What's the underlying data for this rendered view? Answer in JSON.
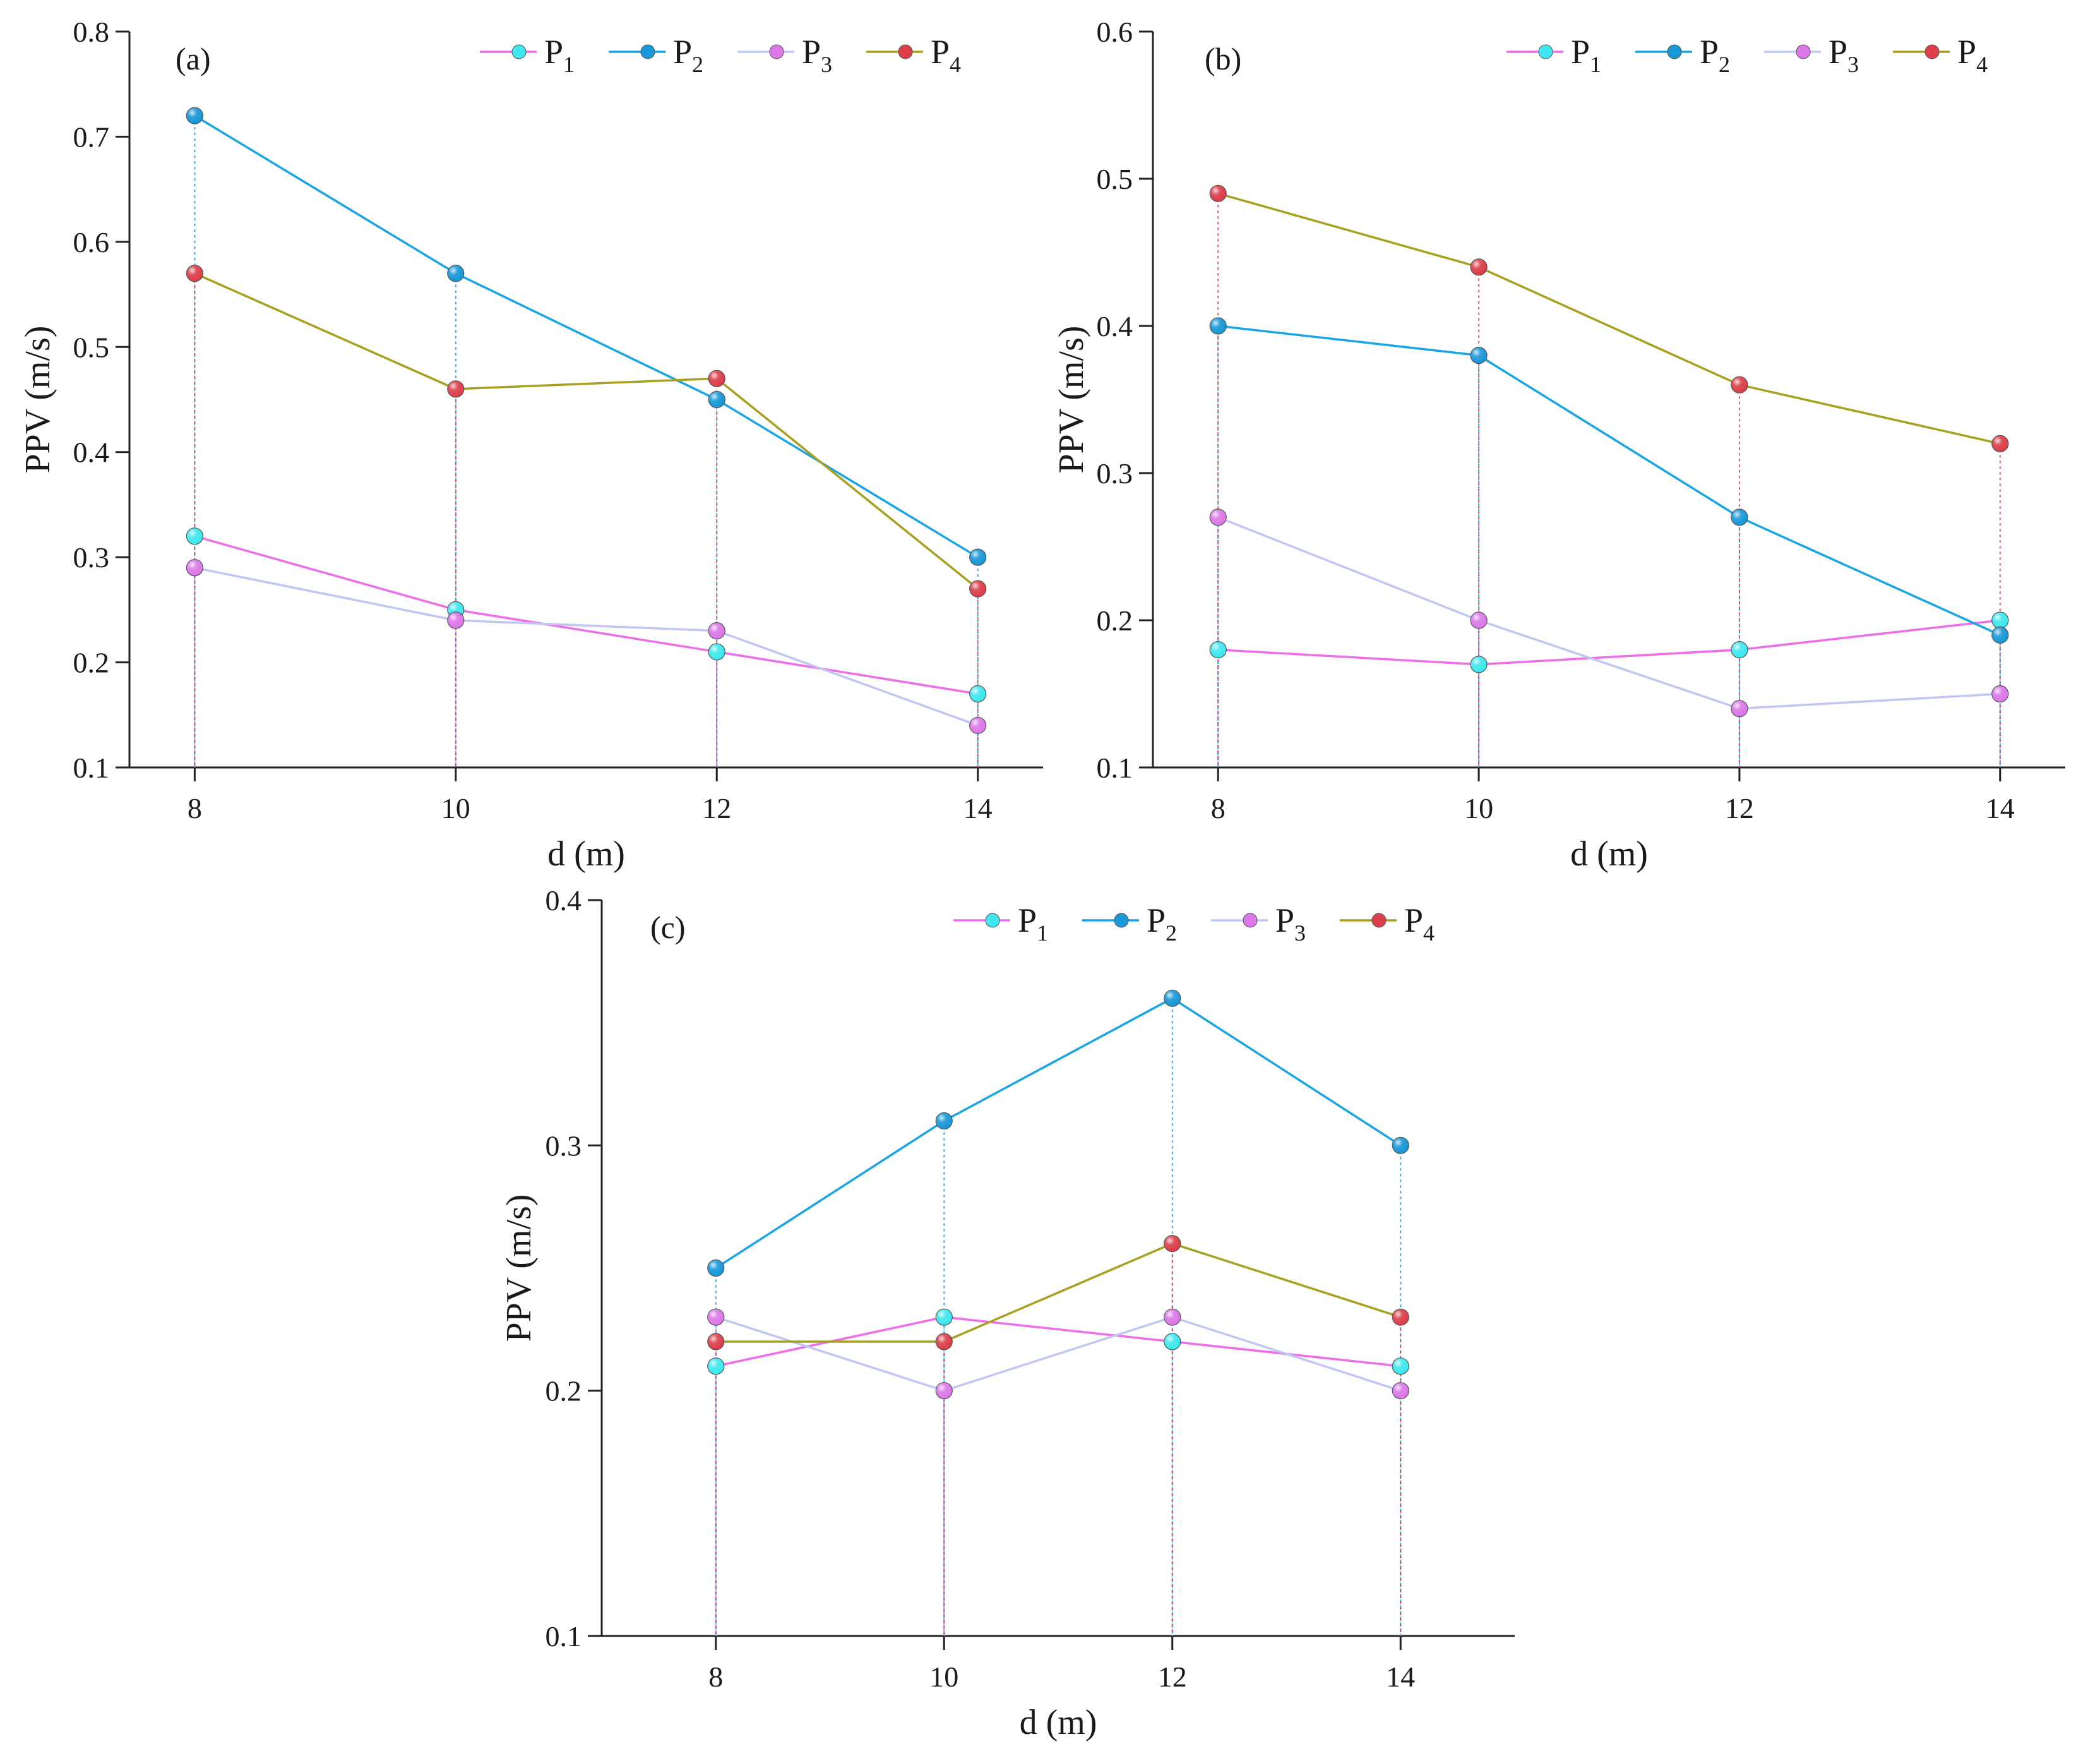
{
  "chart_data": [
    {
      "type": "line",
      "panel": "(a)",
      "xlabel": "d (m)",
      "ylabel": "PPV (m/s)",
      "x": [
        8,
        10,
        12,
        14
      ],
      "xticks": [
        "8",
        "10",
        "12",
        "14"
      ],
      "xlim": [
        7.5,
        14.5
      ],
      "ylim": [
        0.1,
        0.8
      ],
      "yticks": [
        "0.1",
        "0.2",
        "0.3",
        "0.4",
        "0.5",
        "0.6",
        "0.7",
        "0.8"
      ],
      "legend_position": "top-right",
      "series": [
        {
          "name": "P1",
          "base": "P",
          "sub": "1",
          "line_color": "#ee6ee8",
          "marker_color": "#3ee8ee",
          "values": [
            0.32,
            0.25,
            0.21,
            0.17
          ]
        },
        {
          "name": "P2",
          "base": "P",
          "sub": "2",
          "line_color": "#19a5e6",
          "marker_color": "#1998d8",
          "values": [
            0.72,
            0.57,
            0.45,
            0.3
          ]
        },
        {
          "name": "P3",
          "base": "P",
          "sub": "3",
          "line_color": "#c2c6f2",
          "marker_color": "#dc78e8",
          "values": [
            0.29,
            0.24,
            0.23,
            0.14
          ]
        },
        {
          "name": "P4",
          "base": "P",
          "sub": "4",
          "line_color": "#a8a020",
          "marker_color": "#dc3f4a",
          "values": [
            0.57,
            0.46,
            0.47,
            0.27
          ]
        }
      ]
    },
    {
      "type": "line",
      "panel": "(b)",
      "xlabel": "d (m)",
      "ylabel": "PPV (m/s)",
      "x": [
        8,
        10,
        12,
        14
      ],
      "xticks": [
        "8",
        "10",
        "12",
        "14"
      ],
      "xlim": [
        7.5,
        14.5
      ],
      "ylim": [
        0.1,
        0.6
      ],
      "yticks": [
        "0.1",
        "0.2",
        "0.3",
        "0.4",
        "0.5",
        "0.6"
      ],
      "legend_position": "top-right",
      "series": [
        {
          "name": "P1",
          "base": "P",
          "sub": "1",
          "line_color": "#ee6ee8",
          "marker_color": "#3ee8ee",
          "values": [
            0.18,
            0.17,
            0.18,
            0.2
          ]
        },
        {
          "name": "P2",
          "base": "P",
          "sub": "2",
          "line_color": "#19a5e6",
          "marker_color": "#1998d8",
          "values": [
            0.4,
            0.38,
            0.27,
            0.19
          ]
        },
        {
          "name": "P3",
          "base": "P",
          "sub": "3",
          "line_color": "#c2c6f2",
          "marker_color": "#dc78e8",
          "values": [
            0.27,
            0.2,
            0.14,
            0.15
          ]
        },
        {
          "name": "P4",
          "base": "P",
          "sub": "4",
          "line_color": "#a8a020",
          "marker_color": "#dc3f4a",
          "values": [
            0.49,
            0.44,
            0.36,
            0.32
          ]
        }
      ]
    },
    {
      "type": "line",
      "panel": "(c)",
      "xlabel": "d (m)",
      "ylabel": "PPV (m/s)",
      "x": [
        8,
        10,
        12,
        14
      ],
      "xticks": [
        "8",
        "10",
        "12",
        "14"
      ],
      "xlim": [
        7,
        15
      ],
      "ylim": [
        0.1,
        0.4
      ],
      "yticks": [
        "0.1",
        "0.2",
        "0.3",
        "0.4"
      ],
      "legend_position": "top-right",
      "series": [
        {
          "name": "P1",
          "base": "P",
          "sub": "1",
          "line_color": "#ee6ee8",
          "marker_color": "#3ee8ee",
          "values": [
            0.21,
            0.23,
            0.22,
            0.21
          ]
        },
        {
          "name": "P2",
          "base": "P",
          "sub": "2",
          "line_color": "#19a5e6",
          "marker_color": "#1998d8",
          "values": [
            0.25,
            0.31,
            0.36,
            0.3
          ]
        },
        {
          "name": "P3",
          "base": "P",
          "sub": "3",
          "line_color": "#c2c6f2",
          "marker_color": "#dc78e8",
          "values": [
            0.23,
            0.2,
            0.23,
            0.2
          ]
        },
        {
          "name": "P4",
          "base": "P",
          "sub": "4",
          "line_color": "#a8a020",
          "marker_color": "#dc3f4a",
          "values": [
            0.22,
            0.22,
            0.26,
            0.23
          ]
        }
      ]
    }
  ]
}
